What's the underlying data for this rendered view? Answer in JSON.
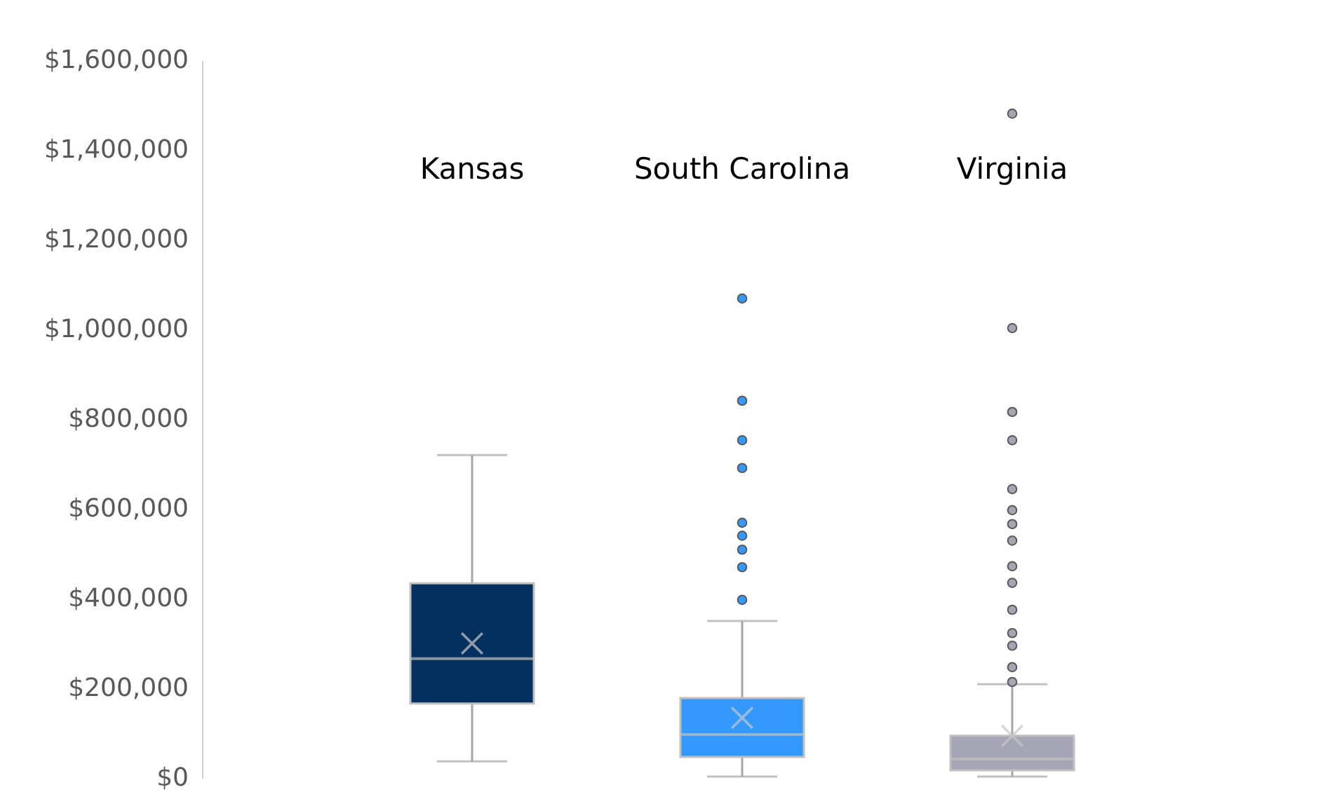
{
  "chart_data": {
    "type": "box",
    "categories": [
      "Kansas",
      "South Carolina",
      "Virginia"
    ],
    "colors": [
      "#03305f",
      "#3399ff",
      "#a5a5b5"
    ],
    "boxes": [
      {
        "low": 37000,
        "q1": 166000,
        "median": 266000,
        "q3": 434000,
        "high": 720000,
        "mean": 300000
      },
      {
        "low": 3000,
        "q1": 47000,
        "median": 97000,
        "q3": 178000,
        "high": 350000,
        "mean": 134000,
        "outliers": [
          397000,
          470000,
          509000,
          540000,
          569000,
          691000,
          753000,
          841000,
          1069000
        ]
      },
      {
        "low": 3000,
        "q1": 17000,
        "median": 42000,
        "q3": 94000,
        "high": 209000,
        "mean": 94000,
        "outliers": [
          214000,
          247000,
          295000,
          323000,
          375000,
          435000,
          472000,
          529000,
          566000,
          597000,
          644000,
          753000,
          816000,
          1003000,
          1481000
        ]
      }
    ],
    "ylim": [
      0,
      1600000
    ],
    "yticks": [
      {
        "value": 0,
        "label": "$0"
      },
      {
        "value": 200000,
        "label": "$200,000"
      },
      {
        "value": 400000,
        "label": "$400,000"
      },
      {
        "value": 600000,
        "label": "$600,000"
      },
      {
        "value": 800000,
        "label": "$800,000"
      },
      {
        "value": 1000000,
        "label": "$1,000,000"
      },
      {
        "value": 1200000,
        "label": "$1,200,000"
      },
      {
        "value": 1400000,
        "label": "$1,400,000"
      },
      {
        "value": 1600000,
        "label": "$1,600,000"
      }
    ],
    "grid": false
  }
}
